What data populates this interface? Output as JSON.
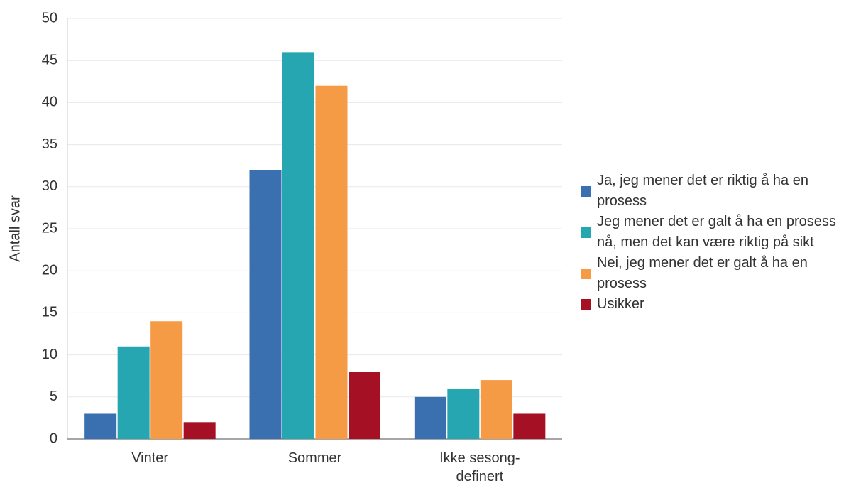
{
  "chart_data": {
    "type": "bar",
    "y_label": "Antall svar",
    "categories": [
      "Vinter",
      "Sommer",
      "Ikke sesong-definert"
    ],
    "series": [
      {
        "name": "Ja, jeg mener det er riktig å ha en prosess",
        "color": "#3a70b0",
        "values": [
          3,
          32,
          5
        ]
      },
      {
        "name": "Jeg mener det er galt å ha en prosess nå, men det kan være riktig på sikt",
        "color": "#26a6b0",
        "values": [
          11,
          46,
          6
        ]
      },
      {
        "name": "Nei, jeg mener det er galt å ha en prosess",
        "color": "#f59a45",
        "values": [
          14,
          42,
          7
        ]
      },
      {
        "name": "Usikker",
        "color": "#a51024",
        "values": [
          2,
          8,
          3
        ]
      }
    ],
    "ylim": [
      0,
      50
    ],
    "yticks": [
      0,
      5,
      10,
      15,
      20,
      25,
      30,
      35,
      40,
      45,
      50
    ],
    "grid": true,
    "legend": "right"
  }
}
